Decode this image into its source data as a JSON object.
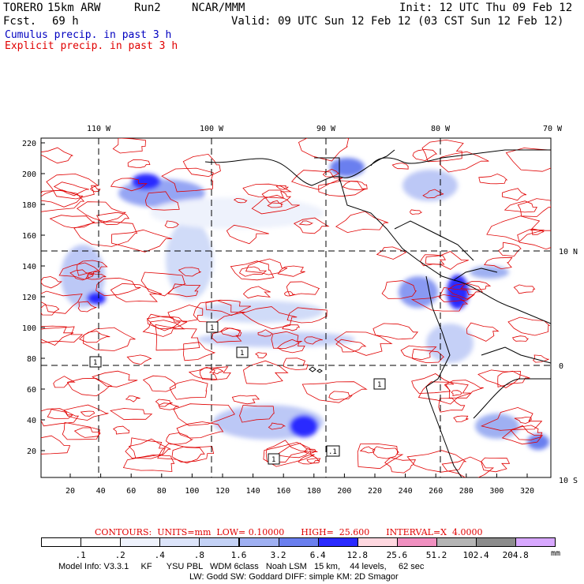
{
  "header": {
    "model": "TORERO",
    "resolution": "15km ARW",
    "run": "Run2",
    "org": "NCAR/MMM",
    "init": "Init: 12 UTC Thu 09 Feb 12",
    "fcst_label": "Fcst.",
    "fcst_value": "69 h",
    "valid": "Valid: 09 UTC Sun 12 Feb 12 (03 CST Sun 12 Feb 12)"
  },
  "legend_text": {
    "cumulus": "Cumulus precip. in past 3 h",
    "explicit": "Explicit precip. in past 3 h"
  },
  "colors": {
    "cumulus": "#0000c0",
    "explicit": "#e00000",
    "coast": "#000000"
  },
  "map": {
    "top_lon_labels": [
      "110 W",
      "100 W",
      "90 W",
      "80 W",
      "70 W"
    ],
    "right_lat_labels": [
      "10 N",
      "0",
      "10 S"
    ],
    "y_ticks": [
      "220",
      "200",
      "180",
      "160",
      "140",
      "120",
      "100",
      "80",
      "60",
      "40",
      "20"
    ],
    "x_ticks": [
      "20",
      "40",
      "60",
      "80",
      "100",
      "120",
      "140",
      "160",
      "180",
      "200",
      "220",
      "240",
      "260",
      "280",
      "300",
      "320"
    ],
    "contour_tags": [
      "1",
      "1",
      "1",
      "1",
      ".1",
      "1"
    ]
  },
  "contours_line": {
    "label": "CONTOURS:",
    "units": "UNITS=mm",
    "low": "LOW= 0.10000",
    "high": "HIGH=  25.600",
    "interval": "INTERVAL=X  4.0000"
  },
  "colorbar": {
    "labels": [
      ".1",
      ".2",
      ".4",
      ".8",
      "1.6",
      "3.2",
      "6.4",
      "12.8",
      "25.6",
      "51.2",
      "102.4",
      "204.8"
    ],
    "colors": [
      "#ffffff",
      "#ffffff",
      "#eef2fc",
      "#dce4fa",
      "#c4d2f6",
      "#9fb0f2",
      "#6a7fef",
      "#2a2aff",
      "#ffd8e0",
      "#f090c0",
      "#b4b4b4",
      "#8c8c8c",
      "#d8a8ff"
    ],
    "unit": "mm"
  },
  "footer": {
    "line1": "Model Info: V3.3.1     KF      YSU PBL   WDM 6class   Noah LSM   15 km,    44 levels,     62 sec",
    "line2": "LW: Godd SW: Goddard DIFF: simple KM: 2D Smagor"
  }
}
